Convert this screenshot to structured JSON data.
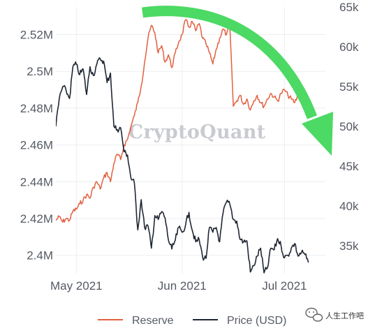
{
  "chart_data": {
    "type": "line",
    "title": "",
    "xlabel": "",
    "ylabel_left": "",
    "ylabel_right": "",
    "x_range": [
      "2021-04-25",
      "2021-07-13"
    ],
    "x_ticks": [
      {
        "date": "2021-05-01",
        "label": "May 2021"
      },
      {
        "date": "2021-06-01",
        "label": "Jun 2021"
      },
      {
        "date": "2021-07-01",
        "label": "Jul 2021"
      }
    ],
    "y_left": {
      "range": [
        2390000,
        2535000
      ],
      "ticks": [
        2400000,
        2420000,
        2440000,
        2460000,
        2480000,
        2500000,
        2520000
      ],
      "tick_labels": [
        "2.4M",
        "2.42M",
        "2.44M",
        "2.46M",
        "2.48M",
        "2.5M",
        "2.52M"
      ]
    },
    "y_right": {
      "range": [
        31500,
        65000
      ],
      "ticks": [
        35000,
        40000,
        45000,
        50000,
        55000,
        60000,
        65000
      ],
      "tick_labels": [
        "35k",
        "40k",
        "45k",
        "50k",
        "55k",
        "60k",
        "65k"
      ]
    },
    "grid": true,
    "legend_position": "bottom",
    "series": [
      {
        "name": "Reserve",
        "axis": "left",
        "color": "#e2603f",
        "points": [
          [
            "2021-04-25",
            2419000
          ],
          [
            "2021-04-26",
            2421000
          ],
          [
            "2021-04-27",
            2418000
          ],
          [
            "2021-04-28",
            2420000
          ],
          [
            "2021-04-29",
            2419000
          ],
          [
            "2021-04-30",
            2424000
          ],
          [
            "2021-05-01",
            2425000
          ],
          [
            "2021-05-02",
            2428000
          ],
          [
            "2021-05-03",
            2430000
          ],
          [
            "2021-05-04",
            2433000
          ],
          [
            "2021-05-05",
            2431000
          ],
          [
            "2021-05-06",
            2437000
          ],
          [
            "2021-05-07",
            2440000
          ],
          [
            "2021-05-08",
            2436000
          ],
          [
            "2021-05-09",
            2442000
          ],
          [
            "2021-05-10",
            2445000
          ],
          [
            "2021-05-11",
            2440000
          ],
          [
            "2021-05-12",
            2450000
          ],
          [
            "2021-05-13",
            2455000
          ],
          [
            "2021-05-14",
            2452000
          ],
          [
            "2021-05-15",
            2460000
          ],
          [
            "2021-05-16",
            2463000
          ],
          [
            "2021-05-17",
            2470000
          ],
          [
            "2021-05-18",
            2476000
          ],
          [
            "2021-05-19",
            2483000
          ],
          [
            "2021-05-20",
            2492000
          ],
          [
            "2021-05-21",
            2505000
          ],
          [
            "2021-05-22",
            2518000
          ],
          [
            "2021-05-23",
            2525000
          ],
          [
            "2021-05-24",
            2521000
          ],
          [
            "2021-05-25",
            2510000
          ],
          [
            "2021-05-26",
            2514000
          ],
          [
            "2021-05-27",
            2505000
          ],
          [
            "2021-05-28",
            2509000
          ],
          [
            "2021-05-29",
            2502000
          ],
          [
            "2021-05-30",
            2510000
          ],
          [
            "2021-05-31",
            2516000
          ],
          [
            "2021-06-01",
            2520000
          ],
          [
            "2021-06-02",
            2528000
          ],
          [
            "2021-06-03",
            2524000
          ],
          [
            "2021-06-04",
            2527000
          ],
          [
            "2021-06-05",
            2522000
          ],
          [
            "2021-06-06",
            2526000
          ],
          [
            "2021-06-07",
            2518000
          ],
          [
            "2021-06-08",
            2515000
          ],
          [
            "2021-06-09",
            2510000
          ],
          [
            "2021-06-10",
            2504000
          ],
          [
            "2021-06-11",
            2512000
          ],
          [
            "2021-06-12",
            2518000
          ],
          [
            "2021-06-13",
            2523000
          ],
          [
            "2021-06-14",
            2520000
          ],
          [
            "2021-06-15",
            2524000
          ],
          [
            "2021-06-16",
            2481000
          ],
          [
            "2021-06-17",
            2484000
          ],
          [
            "2021-06-18",
            2487000
          ],
          [
            "2021-06-19",
            2482000
          ],
          [
            "2021-06-20",
            2485000
          ],
          [
            "2021-06-21",
            2479000
          ],
          [
            "2021-06-22",
            2484000
          ],
          [
            "2021-06-23",
            2487000
          ],
          [
            "2021-06-24",
            2483000
          ],
          [
            "2021-06-25",
            2481000
          ],
          [
            "2021-06-26",
            2485000
          ],
          [
            "2021-06-27",
            2488000
          ],
          [
            "2021-06-28",
            2486000
          ],
          [
            "2021-06-29",
            2484000
          ],
          [
            "2021-06-30",
            2488000
          ],
          [
            "2021-07-01",
            2490000
          ],
          [
            "2021-07-02",
            2487000
          ],
          [
            "2021-07-03",
            2485000
          ],
          [
            "2021-07-04",
            2483000
          ],
          [
            "2021-07-05",
            2487000
          ],
          [
            "2021-07-06",
            2484000
          ],
          [
            "2021-07-07",
            2478000
          ],
          [
            "2021-07-08",
            2476000
          ]
        ]
      },
      {
        "name": "Price (USD)",
        "axis": "right",
        "color": "#1f2633",
        "points": [
          [
            "2021-04-25",
            50000
          ],
          [
            "2021-04-26",
            53500
          ],
          [
            "2021-04-27",
            55000
          ],
          [
            "2021-04-28",
            54500
          ],
          [
            "2021-04-29",
            53500
          ],
          [
            "2021-04-30",
            57500
          ],
          [
            "2021-05-01",
            57800
          ],
          [
            "2021-05-02",
            56500
          ],
          [
            "2021-05-03",
            57200
          ],
          [
            "2021-05-04",
            54000
          ],
          [
            "2021-05-05",
            57500
          ],
          [
            "2021-05-06",
            56400
          ],
          [
            "2021-05-07",
            57800
          ],
          [
            "2021-05-08",
            58500
          ],
          [
            "2021-05-09",
            58200
          ],
          [
            "2021-05-10",
            55500
          ],
          [
            "2021-05-11",
            56700
          ],
          [
            "2021-05-12",
            50000
          ],
          [
            "2021-05-13",
            49600
          ],
          [
            "2021-05-14",
            49800
          ],
          [
            "2021-05-15",
            46800
          ],
          [
            "2021-05-16",
            46400
          ],
          [
            "2021-05-17",
            43500
          ],
          [
            "2021-05-18",
            42900
          ],
          [
            "2021-05-19",
            37000
          ],
          [
            "2021-05-20",
            40800
          ],
          [
            "2021-05-21",
            37300
          ],
          [
            "2021-05-22",
            37500
          ],
          [
            "2021-05-23",
            34700
          ],
          [
            "2021-05-24",
            38800
          ],
          [
            "2021-05-25",
            38300
          ],
          [
            "2021-05-26",
            39300
          ],
          [
            "2021-05-27",
            38500
          ],
          [
            "2021-05-28",
            35700
          ],
          [
            "2021-05-29",
            34600
          ],
          [
            "2021-05-30",
            35700
          ],
          [
            "2021-05-31",
            37300
          ],
          [
            "2021-06-01",
            36700
          ],
          [
            "2021-06-02",
            37600
          ],
          [
            "2021-06-03",
            39200
          ],
          [
            "2021-06-04",
            36900
          ],
          [
            "2021-06-05",
            35500
          ],
          [
            "2021-06-06",
            35800
          ],
          [
            "2021-06-07",
            33600
          ],
          [
            "2021-06-08",
            33400
          ],
          [
            "2021-06-09",
            37300
          ],
          [
            "2021-06-10",
            36700
          ],
          [
            "2021-06-11",
            37300
          ],
          [
            "2021-06-12",
            35500
          ],
          [
            "2021-06-13",
            39100
          ],
          [
            "2021-06-14",
            40500
          ],
          [
            "2021-06-15",
            40200
          ],
          [
            "2021-06-16",
            38300
          ],
          [
            "2021-06-17",
            38100
          ],
          [
            "2021-06-18",
            35800
          ],
          [
            "2021-06-19",
            35500
          ],
          [
            "2021-06-20",
            35600
          ],
          [
            "2021-06-21",
            31700
          ],
          [
            "2021-06-22",
            32500
          ],
          [
            "2021-06-23",
            33700
          ],
          [
            "2021-06-24",
            34700
          ],
          [
            "2021-06-25",
            31600
          ],
          [
            "2021-06-26",
            32200
          ],
          [
            "2021-06-27",
            34700
          ],
          [
            "2021-06-28",
            34500
          ],
          [
            "2021-06-29",
            35900
          ],
          [
            "2021-06-30",
            35000
          ],
          [
            "2021-07-01",
            33500
          ],
          [
            "2021-07-02",
            33800
          ],
          [
            "2021-07-03",
            34700
          ],
          [
            "2021-07-04",
            35300
          ],
          [
            "2021-07-05",
            33700
          ],
          [
            "2021-07-06",
            34200
          ],
          [
            "2021-07-07",
            33900
          ],
          [
            "2021-07-08",
            32900
          ]
        ]
      }
    ]
  },
  "watermark": "CryptoQuant",
  "annotation": {
    "shape": "arrow",
    "color": "#4cd964",
    "direction": "curving-down-right"
  },
  "wechat_badge": {
    "icon": "wechat-icon",
    "text": "人生工作吧"
  }
}
